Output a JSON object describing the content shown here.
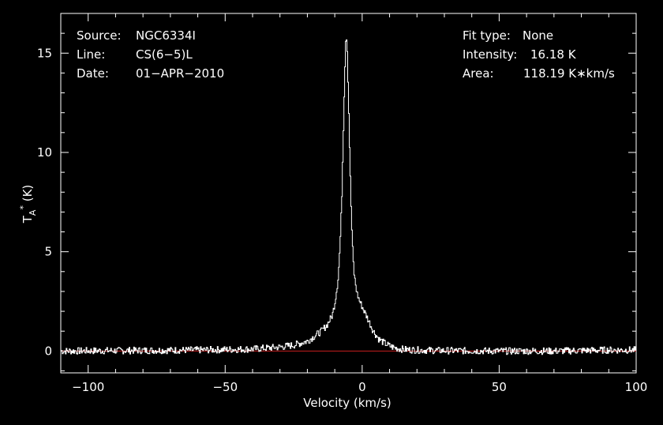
{
  "header": {
    "source_label": "Source:",
    "source_value": "NGC6334I",
    "line_label": "Line:",
    "line_value": "CS(6−5)L",
    "date_label": "Date:",
    "date_value": "01−APR−2010",
    "fit_label": "Fit type:",
    "fit_value": "None",
    "intensity_label": "Intensity:",
    "intensity_value": "16.18 K",
    "area_label": "Area:",
    "area_value": "118.19 K∗km/s"
  },
  "colors": {
    "background": "#000000",
    "spectrum": "#ffffff",
    "baseline": "#c81e1e",
    "frame": "#ffffff"
  },
  "chart_data": {
    "type": "line",
    "title": "",
    "xlabel": "Velocity (km/s)",
    "ylabel": "T*A (K)",
    "xlim": [
      -110,
      100
    ],
    "ylim": [
      -1.1,
      17
    ],
    "xticks": [
      -100,
      -50,
      0,
      50,
      100
    ],
    "xtick_labels": [
      "−100",
      "−50",
      "0",
      "50",
      "100"
    ],
    "yticks": [
      0,
      5,
      10,
      15
    ],
    "ytick_labels": [
      "0",
      "5",
      "10",
      "15"
    ],
    "baseline_value": 0,
    "series": [
      {
        "values_x": [
          -110,
          -60,
          -40,
          -30,
          -25,
          -20,
          -17,
          -15,
          -13,
          -11,
          -10,
          -9,
          -8.5,
          -8,
          -7.5,
          -7,
          -6.5,
          -6,
          -5.5,
          -5,
          -4.5,
          -4,
          -3.5,
          -3,
          -2,
          -1,
          0,
          1,
          2,
          3,
          4,
          5,
          6,
          8,
          10,
          12,
          15,
          20,
          30,
          50,
          70,
          90,
          100
        ],
        "values_y": [
          0,
          0.05,
          0.1,
          0.2,
          0.3,
          0.5,
          0.8,
          1.0,
          1.3,
          1.8,
          2.5,
          3.5,
          4.5,
          6.0,
          8.0,
          11.0,
          14.0,
          16.18,
          15.0,
          12.0,
          9.0,
          6.5,
          4.8,
          3.8,
          2.9,
          2.5,
          2.2,
          1.9,
          1.6,
          1.3,
          1.0,
          0.8,
          0.6,
          0.4,
          0.25,
          0.15,
          0.08,
          0.05,
          0.02,
          0.0,
          0.0,
          0.05,
          0.05
        ]
      }
    ]
  }
}
